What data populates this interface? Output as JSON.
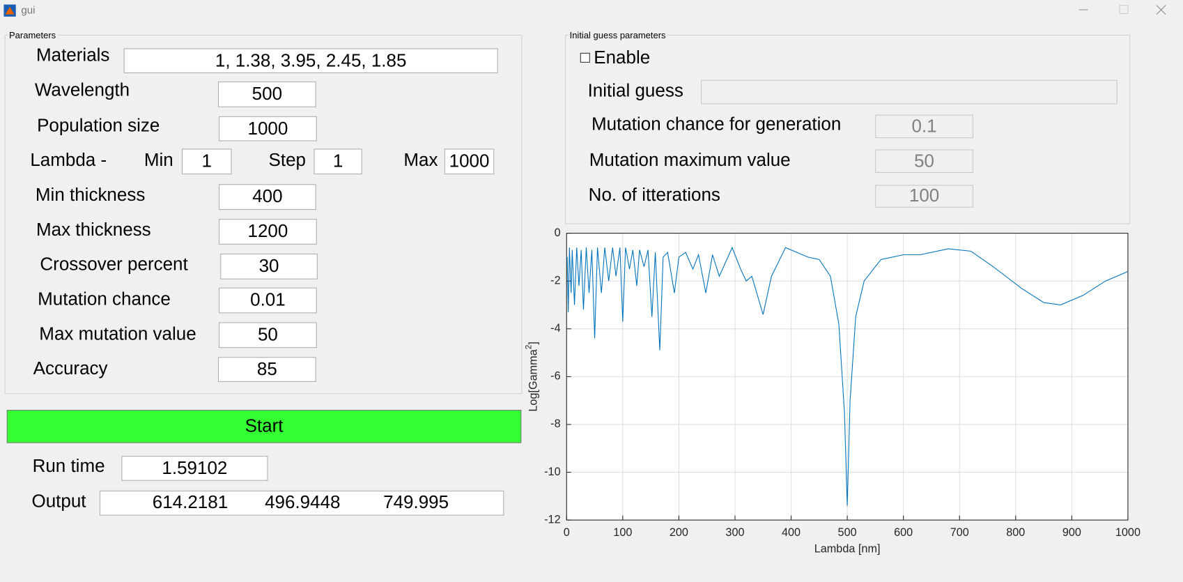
{
  "window": {
    "title": "gui"
  },
  "parameters": {
    "title": "Parameters",
    "fields": [
      {
        "label": "Materials",
        "value": "1, 1.38, 3.95, 2.45, 1.85"
      },
      {
        "label": "Wavelength",
        "value": "500"
      },
      {
        "label": "Population size",
        "value": "1000"
      },
      {
        "label": "Min thickness",
        "value": "400"
      },
      {
        "label": "Max thickness",
        "value": "1200"
      },
      {
        "label": "Crossover percent",
        "value": "30"
      },
      {
        "label": "Mutation chance",
        "value": "0.01"
      },
      {
        "label": "Max mutation value",
        "value": "50"
      },
      {
        "label": "Accuracy",
        "value": "85"
      }
    ],
    "lambda": {
      "label": "Lambda -",
      "min_label": "Min",
      "min": "1",
      "step_label": "Step",
      "step": "1",
      "max_label": "Max",
      "max": "1000"
    }
  },
  "start": "Start",
  "run_time": {
    "label": "Run time",
    "value": "1.59102"
  },
  "output": {
    "label": "Output",
    "values": [
      "614.2181",
      "496.9448",
      "749.995"
    ]
  },
  "initial_guess": {
    "title": "Initial guess parameters",
    "enable": "Enable",
    "fields": [
      {
        "label": "Initial guess",
        "value": ""
      },
      {
        "label": "Mutation chance for generation",
        "value": "0.1"
      },
      {
        "label": "Mutation maximum value",
        "value": "50"
      },
      {
        "label": "No. of itterations",
        "value": "100"
      }
    ]
  },
  "chart_data": {
    "type": "line",
    "xlabel": "Lambda [nm]",
    "ylabel": [
      "Log[Gamma",
      "2",
      "]"
    ],
    "color": "#0072bd",
    "grid": true,
    "xlim": [
      0,
      1000
    ],
    "ylim": [
      -12,
      0
    ],
    "xticks": [
      0,
      100,
      200,
      300,
      400,
      500,
      600,
      700,
      800,
      900,
      1000
    ],
    "yticks": [
      -12,
      -10,
      -8,
      -6,
      -4,
      -2,
      0
    ],
    "x": [
      1,
      3,
      5,
      8,
      10,
      14,
      18,
      22,
      26,
      30,
      35,
      40,
      45,
      50,
      55,
      62,
      68,
      75,
      82,
      88,
      95,
      100,
      105,
      112,
      118,
      125,
      130,
      138,
      145,
      152,
      158,
      166,
      172,
      180,
      192,
      200,
      212,
      225,
      235,
      248,
      260,
      272,
      295,
      310,
      320,
      330,
      350,
      365,
      390,
      410,
      430,
      450,
      470,
      485,
      495,
      500,
      505,
      515,
      530,
      560,
      600,
      630,
      680,
      720,
      760,
      810,
      850,
      880,
      920,
      960,
      1000
    ],
    "values": [
      -1,
      -3.3,
      -0.6,
      -2.5,
      -0.7,
      -3,
      -0.6,
      -2.2,
      -0.7,
      -3.2,
      -0.6,
      -2.5,
      -0.7,
      -4.4,
      -0.6,
      -2.5,
      -0.6,
      -2,
      -0.6,
      -1.8,
      -0.6,
      -3.7,
      -0.6,
      -1.5,
      -0.7,
      -2.2,
      -0.7,
      -1.4,
      -0.7,
      -3.5,
      -0.8,
      -4.9,
      -1,
      -0.8,
      -2.5,
      -1,
      -0.8,
      -1.5,
      -0.9,
      -2.5,
      -0.9,
      -1.8,
      -0.6,
      -1.5,
      -2,
      -1.8,
      -3.4,
      -1.8,
      -0.6,
      -0.8,
      -1,
      -1.1,
      -1.8,
      -3.8,
      -7.5,
      -11.4,
      -7,
      -3.5,
      -2,
      -1.1,
      -0.9,
      -0.9,
      -0.65,
      -0.75,
      -1.4,
      -2.3,
      -2.9,
      -3,
      -2.6,
      -2,
      -1.6
    ]
  }
}
